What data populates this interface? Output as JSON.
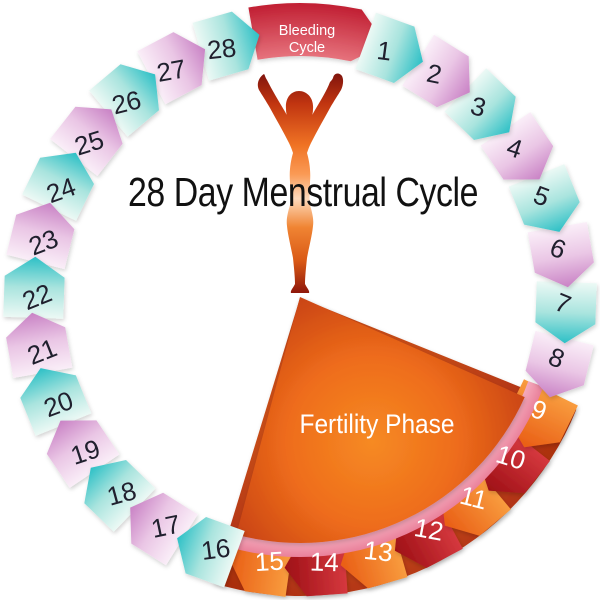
{
  "title": "28 Day Menstrual Cycle",
  "fertility_label": "Fertility Phase",
  "bleeding": {
    "line1": "Bleeding",
    "line2": "Cycle"
  },
  "days": [
    {
      "label": "1",
      "style": "teal",
      "phase": "cycle"
    },
    {
      "label": "2",
      "style": "pink",
      "phase": "cycle"
    },
    {
      "label": "3",
      "style": "teal",
      "phase": "cycle"
    },
    {
      "label": "4",
      "style": "pink",
      "phase": "cycle"
    },
    {
      "label": "5",
      "style": "teal",
      "phase": "cycle"
    },
    {
      "label": "6",
      "style": "pink",
      "phase": "cycle"
    },
    {
      "label": "7",
      "style": "teal",
      "phase": "cycle"
    },
    {
      "label": "8",
      "style": "pink",
      "phase": "cycle"
    },
    {
      "label": "9",
      "style": "orange",
      "phase": "fertility"
    },
    {
      "label": "10",
      "style": "red",
      "phase": "fertility"
    },
    {
      "label": "11",
      "style": "orange",
      "phase": "fertility"
    },
    {
      "label": "12",
      "style": "red",
      "phase": "fertility"
    },
    {
      "label": "13",
      "style": "orange",
      "phase": "fertility"
    },
    {
      "label": "14",
      "style": "red",
      "phase": "fertility"
    },
    {
      "label": "15",
      "style": "orange",
      "phase": "fertility"
    },
    {
      "label": "16",
      "style": "teal",
      "phase": "cycle"
    },
    {
      "label": "17",
      "style": "pink",
      "phase": "cycle"
    },
    {
      "label": "18",
      "style": "teal",
      "phase": "cycle"
    },
    {
      "label": "19",
      "style": "pink",
      "phase": "cycle"
    },
    {
      "label": "20",
      "style": "teal",
      "phase": "cycle"
    },
    {
      "label": "21",
      "style": "pink",
      "phase": "cycle"
    },
    {
      "label": "22",
      "style": "teal",
      "phase": "cycle"
    },
    {
      "label": "23",
      "style": "pink",
      "phase": "cycle"
    },
    {
      "label": "24",
      "style": "teal",
      "phase": "cycle"
    },
    {
      "label": "25",
      "style": "pink",
      "phase": "cycle"
    },
    {
      "label": "26",
      "style": "teal",
      "phase": "cycle"
    },
    {
      "label": "27",
      "style": "pink",
      "phase": "cycle"
    },
    {
      "label": "28",
      "style": "teal",
      "phase": "cycle"
    }
  ],
  "colors": {
    "teal_gradient": [
      "#ecf9f5",
      "#a9e4de",
      "#2dc0c6"
    ],
    "pink_gradient": [
      "#faeef8",
      "#eac6e5",
      "#c982c5"
    ],
    "orange_gradient": [
      "#f89c3e",
      "#e95d15"
    ],
    "red_gradient": [
      "#d5383e",
      "#9e1016"
    ],
    "bleeding_gradient": [
      "#ea7b84",
      "#c01d31"
    ],
    "wedge_gradient": [
      "#f68a23",
      "#ee6c1b",
      "#c23c11",
      "#8f1e0b"
    ],
    "outer_sector_gradient": [
      "#e06a1e",
      "#b23412",
      "#8a1c0a"
    ],
    "rim_arc_gradient": [
      "#fbc9d4",
      "#f2a0b4",
      "#e97e98"
    ],
    "figure_gradient": [
      "#7d130d",
      "#c03410",
      "#f07324",
      "#fa9a55",
      "#fdd9bb",
      "#f08433",
      "#da5a16",
      "#8c150a"
    ],
    "number_dark": "#20202e",
    "number_light": "#ffffff",
    "label_light": "#ffffff",
    "title_color": "#111111"
  }
}
